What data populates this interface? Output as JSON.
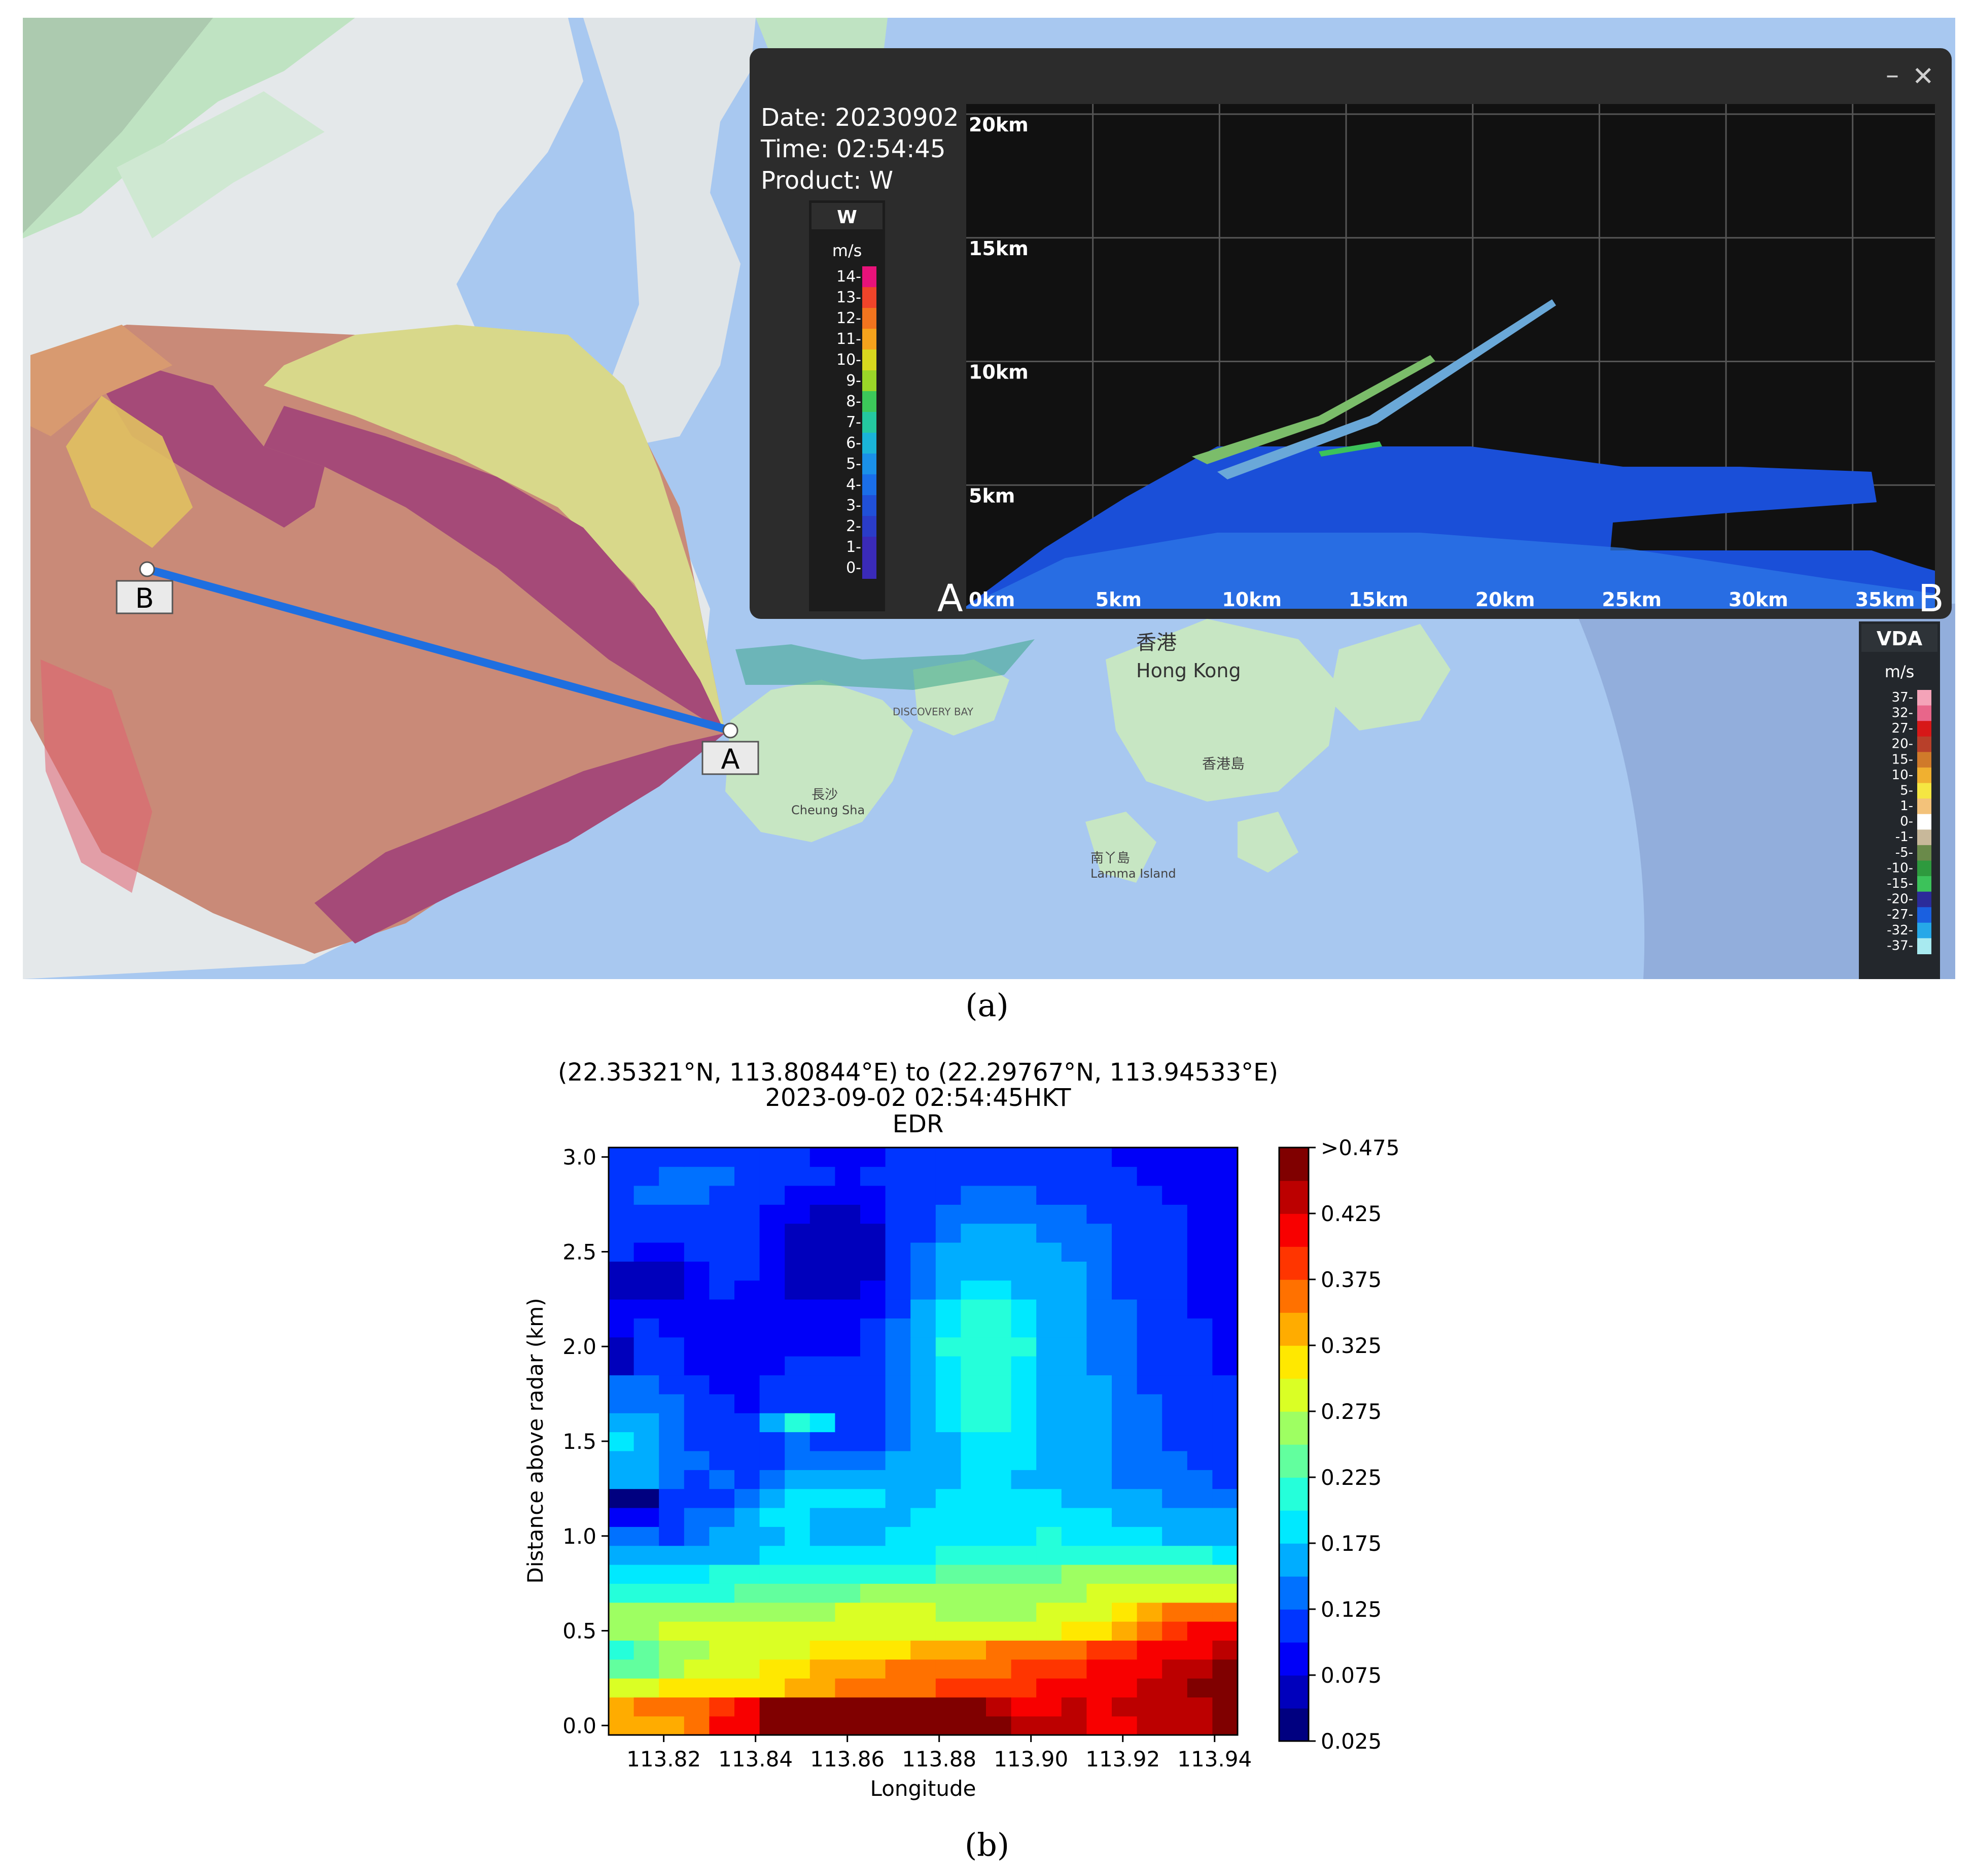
{
  "map": {
    "point_a_label": "A",
    "point_b_label": "B",
    "hong_kong_zh": "香港",
    "hong_kong_en": "Hong Kong",
    "lamma_zh": "南丫島",
    "lamma_en": "Lamma Island",
    "cheung_sha_zh": "長沙",
    "cheung_sha_en": "Cheung Sha",
    "hk_island_zh": "香港島",
    "discovery_bay": "DISCOVERY BAY",
    "colors": {
      "sea": "#a8c8f0",
      "land": "#e9ecef",
      "green": "#bfe3c2",
      "radar_purple": "#a54a78",
      "radar_brown": "#c98a78",
      "radar_yellow": "#d8d88a",
      "line": "#1e6fe0"
    }
  },
  "vda_legend": {
    "title": "VDA",
    "unit": "m/s",
    "ticks": [
      "37-",
      "32-",
      "27-",
      "20-",
      "15-",
      "10-",
      "5-",
      "1-",
      "0-",
      "-1-",
      "-5-",
      "-10-",
      "-15-",
      "-20-",
      "-27-",
      "-32-",
      "-37-"
    ],
    "colors": [
      "#f4a3b8",
      "#e8668a",
      "#d71818",
      "#b8402a",
      "#d07a2a",
      "#f0b030",
      "#f5e642",
      "#f3c27a",
      "#ffffff",
      "#c8b89a",
      "#6a8a4a",
      "#2e9a3e",
      "#3cc25a",
      "#2b2b9a",
      "#1a60e0",
      "#26a8e8",
      "#a8eaf0"
    ]
  },
  "popup": {
    "date_line": "Date: 20230902",
    "time_line": "Time: 02:54:45",
    "product_line": "Product: W",
    "colorbar_title": "W",
    "colorbar_unit": "m/s",
    "colorbar_ticks": [
      "14-",
      "13-",
      "12-",
      "11-",
      "10-",
      "9-",
      "8-",
      "7-",
      "6-",
      "5-",
      "4-",
      "3-",
      "2-",
      "1-",
      "0-"
    ],
    "y_ticks": [
      "20km",
      "15km",
      "10km",
      "5km"
    ],
    "x_ticks": [
      "0km",
      "5km",
      "10km",
      "15km",
      "20km",
      "25km",
      "30km",
      "35km"
    ],
    "endpoint_a": "A",
    "endpoint_b": "B",
    "minimize_icon": "minimize-icon",
    "close_icon": "close-icon"
  },
  "caption_a": "(a)",
  "caption_b": "(b)",
  "chart_data": {
    "type": "heatmap",
    "title_line1": "(22.35321°N, 113.80844°E) to (22.29767°N, 113.94533°E)",
    "title_line2": "2023-09-02 02:54:45HKT",
    "title_line3": "EDR",
    "xlabel": "Longitude",
    "ylabel": "Distance above radar (km)",
    "xlim": [
      113.808,
      113.945
    ],
    "ylim": [
      -0.05,
      3.05
    ],
    "x_ticks": [
      "113.82",
      "113.84",
      "113.86",
      "113.88",
      "113.90",
      "113.92",
      "113.94"
    ],
    "x_tick_values": [
      113.82,
      113.84,
      113.86,
      113.88,
      113.9,
      113.92,
      113.94
    ],
    "y_ticks": [
      "0.0",
      "0.5",
      "1.0",
      "1.5",
      "2.0",
      "2.5",
      "3.0"
    ],
    "y_tick_values": [
      0.0,
      0.5,
      1.0,
      1.5,
      2.0,
      2.5,
      3.0
    ],
    "colorbar_labels": [
      ">0.475",
      "0.425",
      "0.375",
      "0.325",
      "0.275",
      "0.225",
      "0.175",
      "0.125",
      "0.075",
      "0.025"
    ],
    "colorbar_range": [
      0.025,
      0.475
    ],
    "grid": false,
    "cols": 25,
    "rows": 31,
    "z": [
      [
        0.34,
        0.34,
        0.34,
        0.36,
        0.4,
        0.42,
        0.46,
        0.48,
        0.48,
        0.48,
        0.48,
        0.48,
        0.48,
        0.48,
        0.46,
        0.48,
        0.44,
        0.43,
        0.44,
        0.42,
        0.42,
        0.43,
        0.43,
        0.44,
        0.47
      ],
      [
        0.34,
        0.35,
        0.36,
        0.36,
        0.38,
        0.4,
        0.45,
        0.47,
        0.48,
        0.48,
        0.48,
        0.47,
        0.48,
        0.47,
        0.45,
        0.44,
        0.42,
        0.42,
        0.43,
        0.42,
        0.43,
        0.44,
        0.43,
        0.44,
        0.46
      ],
      [
        0.3,
        0.3,
        0.31,
        0.31,
        0.31,
        0.32,
        0.32,
        0.33,
        0.34,
        0.35,
        0.36,
        0.36,
        0.36,
        0.38,
        0.38,
        0.39,
        0.39,
        0.4,
        0.4,
        0.42,
        0.42,
        0.43,
        0.44,
        0.45,
        0.46
      ],
      [
        0.24,
        0.24,
        0.26,
        0.28,
        0.29,
        0.3,
        0.31,
        0.32,
        0.33,
        0.34,
        0.34,
        0.35,
        0.35,
        0.36,
        0.37,
        0.37,
        0.38,
        0.38,
        0.39,
        0.4,
        0.41,
        0.41,
        0.43,
        0.44,
        0.47
      ],
      [
        0.22,
        0.23,
        0.25,
        0.27,
        0.28,
        0.29,
        0.3,
        0.3,
        0.31,
        0.31,
        0.32,
        0.32,
        0.33,
        0.33,
        0.34,
        0.35,
        0.36,
        0.37,
        0.37,
        0.38,
        0.39,
        0.4,
        0.41,
        0.42,
        0.44
      ],
      [
        0.27,
        0.27,
        0.28,
        0.29,
        0.29,
        0.29,
        0.29,
        0.29,
        0.3,
        0.3,
        0.3,
        0.3,
        0.3,
        0.3,
        0.3,
        0.29,
        0.3,
        0.3,
        0.31,
        0.32,
        0.34,
        0.36,
        0.38,
        0.4,
        0.4
      ],
      [
        0.25,
        0.25,
        0.26,
        0.26,
        0.26,
        0.27,
        0.27,
        0.27,
        0.27,
        0.28,
        0.28,
        0.28,
        0.28,
        0.27,
        0.27,
        0.27,
        0.27,
        0.28,
        0.29,
        0.3,
        0.32,
        0.33,
        0.35,
        0.37,
        0.37
      ],
      [
        0.21,
        0.21,
        0.22,
        0.22,
        0.22,
        0.23,
        0.23,
        0.23,
        0.24,
        0.24,
        0.25,
        0.25,
        0.25,
        0.25,
        0.26,
        0.26,
        0.26,
        0.27,
        0.27,
        0.28,
        0.28,
        0.29,
        0.29,
        0.3,
        0.3
      ],
      [
        0.18,
        0.18,
        0.19,
        0.19,
        0.2,
        0.2,
        0.2,
        0.21,
        0.21,
        0.21,
        0.22,
        0.22,
        0.22,
        0.23,
        0.23,
        0.24,
        0.24,
        0.24,
        0.25,
        0.25,
        0.25,
        0.26,
        0.26,
        0.26,
        0.26
      ],
      [
        0.16,
        0.16,
        0.16,
        0.17,
        0.17,
        0.17,
        0.18,
        0.18,
        0.18,
        0.19,
        0.19,
        0.19,
        0.19,
        0.2,
        0.2,
        0.2,
        0.21,
        0.21,
        0.21,
        0.21,
        0.21,
        0.21,
        0.2,
        0.2,
        0.19
      ],
      [
        0.13,
        0.13,
        0.12,
        0.14,
        0.15,
        0.15,
        0.17,
        0.18,
        0.17,
        0.16,
        0.17,
        0.18,
        0.18,
        0.18,
        0.19,
        0.19,
        0.19,
        0.2,
        0.19,
        0.19,
        0.18,
        0.18,
        0.17,
        0.16,
        0.16
      ],
      [
        0.09,
        0.09,
        0.12,
        0.13,
        0.13,
        0.15,
        0.18,
        0.18,
        0.17,
        0.17,
        0.17,
        0.17,
        0.18,
        0.18,
        0.19,
        0.19,
        0.19,
        0.19,
        0.18,
        0.18,
        0.17,
        0.16,
        0.16,
        0.15,
        0.15
      ],
      [
        0.04,
        0.04,
        0.12,
        0.11,
        0.12,
        0.14,
        0.17,
        0.19,
        0.19,
        0.18,
        0.18,
        0.17,
        0.17,
        0.18,
        0.18,
        0.19,
        0.18,
        0.18,
        0.17,
        0.16,
        0.16,
        0.15,
        0.14,
        0.14,
        0.13
      ],
      [
        0.16,
        0.15,
        0.14,
        0.12,
        0.13,
        0.11,
        0.13,
        0.15,
        0.16,
        0.15,
        0.15,
        0.16,
        0.16,
        0.17,
        0.18,
        0.18,
        0.17,
        0.17,
        0.16,
        0.15,
        0.14,
        0.14,
        0.13,
        0.13,
        0.12
      ],
      [
        0.15,
        0.15,
        0.14,
        0.13,
        0.12,
        0.1,
        0.12,
        0.14,
        0.14,
        0.13,
        0.13,
        0.15,
        0.16,
        0.17,
        0.18,
        0.18,
        0.18,
        0.17,
        0.16,
        0.15,
        0.14,
        0.13,
        0.13,
        0.12,
        0.12
      ],
      [
        0.18,
        0.15,
        0.14,
        0.12,
        0.11,
        0.1,
        0.11,
        0.13,
        0.12,
        0.11,
        0.12,
        0.14,
        0.15,
        0.17,
        0.19,
        0.19,
        0.18,
        0.17,
        0.16,
        0.15,
        0.14,
        0.13,
        0.12,
        0.12,
        0.11
      ],
      [
        0.16,
        0.15,
        0.14,
        0.12,
        0.11,
        0.1,
        0.16,
        0.2,
        0.18,
        0.12,
        0.12,
        0.13,
        0.16,
        0.18,
        0.2,
        0.2,
        0.18,
        0.17,
        0.16,
        0.15,
        0.14,
        0.13,
        0.12,
        0.11,
        0.11
      ],
      [
        0.14,
        0.14,
        0.13,
        0.12,
        0.1,
        0.09,
        0.1,
        0.12,
        0.11,
        0.1,
        0.11,
        0.13,
        0.16,
        0.19,
        0.21,
        0.21,
        0.19,
        0.17,
        0.16,
        0.15,
        0.14,
        0.13,
        0.12,
        0.11,
        0.1
      ],
      [
        0.14,
        0.13,
        0.11,
        0.1,
        0.09,
        0.09,
        0.1,
        0.11,
        0.1,
        0.1,
        0.11,
        0.13,
        0.16,
        0.19,
        0.21,
        0.21,
        0.19,
        0.17,
        0.16,
        0.15,
        0.13,
        0.12,
        0.11,
        0.1,
        0.1
      ],
      [
        0.07,
        0.12,
        0.11,
        0.09,
        0.09,
        0.09,
        0.09,
        0.1,
        0.1,
        0.1,
        0.11,
        0.13,
        0.16,
        0.19,
        0.22,
        0.21,
        0.19,
        0.17,
        0.16,
        0.14,
        0.13,
        0.12,
        0.11,
        0.1,
        0.09
      ],
      [
        0.05,
        0.11,
        0.1,
        0.09,
        0.08,
        0.09,
        0.09,
        0.09,
        0.09,
        0.09,
        0.11,
        0.13,
        0.16,
        0.2,
        0.22,
        0.22,
        0.2,
        0.17,
        0.15,
        0.14,
        0.13,
        0.12,
        0.11,
        0.1,
        0.09
      ],
      [
        0.09,
        0.1,
        0.09,
        0.08,
        0.08,
        0.08,
        0.08,
        0.08,
        0.09,
        0.09,
        0.1,
        0.13,
        0.16,
        0.19,
        0.21,
        0.21,
        0.19,
        0.17,
        0.15,
        0.14,
        0.13,
        0.12,
        0.11,
        0.1,
        0.09
      ],
      [
        0.09,
        0.09,
        0.08,
        0.08,
        0.08,
        0.08,
        0.08,
        0.08,
        0.08,
        0.08,
        0.09,
        0.12,
        0.15,
        0.18,
        0.2,
        0.2,
        0.18,
        0.16,
        0.15,
        0.14,
        0.13,
        0.11,
        0.1,
        0.09,
        0.09
      ],
      [
        0.06,
        0.06,
        0.06,
        0.09,
        0.1,
        0.09,
        0.08,
        0.07,
        0.06,
        0.06,
        0.08,
        0.11,
        0.14,
        0.17,
        0.19,
        0.19,
        0.17,
        0.16,
        0.15,
        0.14,
        0.12,
        0.11,
        0.1,
        0.09,
        0.08
      ],
      [
        0.06,
        0.06,
        0.06,
        0.09,
        0.1,
        0.1,
        0.08,
        0.07,
        0.05,
        0.05,
        0.07,
        0.1,
        0.14,
        0.16,
        0.17,
        0.17,
        0.17,
        0.16,
        0.15,
        0.14,
        0.12,
        0.11,
        0.1,
        0.09,
        0.08
      ],
      [
        0.1,
        0.09,
        0.09,
        0.1,
        0.11,
        0.1,
        0.08,
        0.07,
        0.05,
        0.05,
        0.06,
        0.1,
        0.13,
        0.15,
        0.16,
        0.16,
        0.16,
        0.15,
        0.14,
        0.13,
        0.12,
        0.11,
        0.1,
        0.09,
        0.08
      ],
      [
        0.11,
        0.1,
        0.1,
        0.11,
        0.11,
        0.1,
        0.08,
        0.07,
        0.06,
        0.05,
        0.07,
        0.1,
        0.12,
        0.14,
        0.15,
        0.15,
        0.15,
        0.14,
        0.13,
        0.13,
        0.12,
        0.11,
        0.1,
        0.09,
        0.08
      ],
      [
        0.12,
        0.12,
        0.11,
        0.11,
        0.11,
        0.1,
        0.09,
        0.08,
        0.07,
        0.07,
        0.08,
        0.1,
        0.12,
        0.13,
        0.14,
        0.14,
        0.14,
        0.13,
        0.13,
        0.12,
        0.11,
        0.1,
        0.1,
        0.09,
        0.08
      ],
      [
        0.12,
        0.13,
        0.13,
        0.14,
        0.12,
        0.11,
        0.1,
        0.09,
        0.08,
        0.08,
        0.09,
        0.1,
        0.11,
        0.12,
        0.13,
        0.13,
        0.13,
        0.12,
        0.12,
        0.11,
        0.11,
        0.1,
        0.09,
        0.09,
        0.08
      ],
      [
        0.11,
        0.12,
        0.13,
        0.14,
        0.13,
        0.12,
        0.11,
        0.1,
        0.1,
        0.09,
        0.1,
        0.1,
        0.11,
        0.11,
        0.12,
        0.12,
        0.12,
        0.11,
        0.11,
        0.1,
        0.1,
        0.09,
        0.09,
        0.08,
        0.08
      ],
      [
        0.1,
        0.11,
        0.12,
        0.12,
        0.12,
        0.11,
        0.1,
        0.1,
        0.09,
        0.08,
        0.09,
        0.1,
        0.1,
        0.11,
        0.11,
        0.11,
        0.11,
        0.1,
        0.1,
        0.1,
        0.09,
        0.09,
        0.08,
        0.08,
        0.08
      ]
    ]
  }
}
